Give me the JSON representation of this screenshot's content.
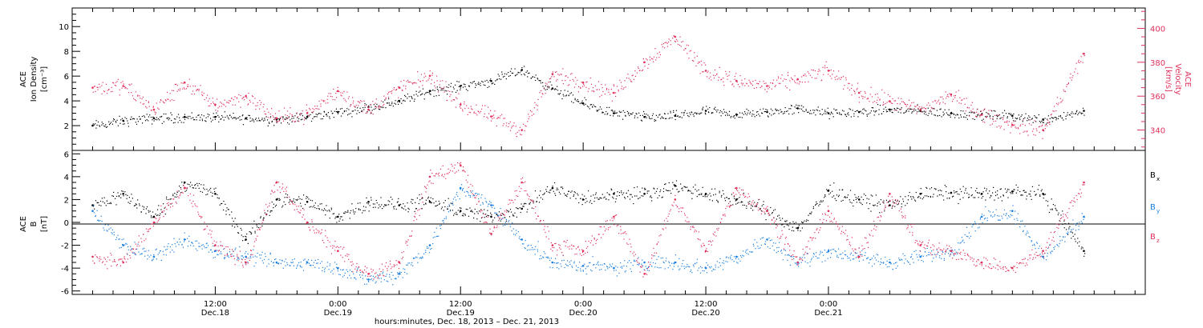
{
  "chart_data": [
    {
      "type": "scatter",
      "panel": "top",
      "ylabel_left": [
        "ACE",
        "Ion Density",
        "[cm⁻³]"
      ],
      "ylabel_right": [
        "ACE",
        "Velocity",
        "[km/s]"
      ],
      "ylim_left": [
        0,
        11.5
      ],
      "ylim_right": [
        328,
        412
      ],
      "yticks_left": [
        "2",
        "4",
        "6",
        "8",
        "10"
      ],
      "yticks_right": [
        "340",
        "360",
        "380",
        "400"
      ],
      "series": [
        {
          "name": "Ion Density",
          "axis": "left",
          "color": "#000000",
          "x_hours": [
            0,
            6,
            12,
            18,
            24,
            30,
            36,
            42,
            48,
            54,
            60,
            66,
            72,
            78,
            84,
            90,
            96,
            102,
            108,
            114,
            120,
            126,
            132,
            138,
            144,
            150,
            156,
            162,
            168,
            174,
            180,
            186,
            194
          ],
          "values": [
            2.0,
            2.4,
            2.6,
            2.7,
            2.7,
            2.6,
            2.5,
            2.7,
            3.1,
            3.5,
            4.0,
            4.8,
            5.2,
            5.6,
            6.5,
            5.0,
            3.8,
            3.0,
            2.7,
            2.8,
            3.2,
            2.9,
            3.1,
            3.4,
            3.0,
            3.1,
            3.3,
            3.2,
            3.0,
            2.9,
            2.8,
            2.5,
            3.2
          ]
        },
        {
          "name": "Velocity",
          "axis": "right",
          "color": "#e0305c",
          "x_hours": [
            0,
            6,
            12,
            18,
            24,
            30,
            36,
            42,
            48,
            54,
            60,
            66,
            72,
            78,
            84,
            90,
            96,
            102,
            108,
            114,
            120,
            126,
            132,
            138,
            144,
            150,
            156,
            162,
            168,
            174,
            180,
            186,
            194
          ],
          "values": [
            365,
            366,
            352,
            368,
            355,
            360,
            347,
            350,
            363,
            352,
            365,
            372,
            355,
            348,
            340,
            373,
            368,
            362,
            380,
            395,
            375,
            369,
            366,
            370,
            375,
            362,
            357,
            352,
            361,
            349,
            343,
            340,
            385
          ]
        }
      ]
    },
    {
      "type": "scatter",
      "panel": "bottom",
      "ylabel_left": [
        "ACE",
        "B",
        "[nT]"
      ],
      "ylim": [
        -6.3,
        6.3
      ],
      "yticks": [
        "-6",
        "-4",
        "-2",
        "0",
        "2",
        "4",
        "6"
      ],
      "legend_placement": "right",
      "series": [
        {
          "name": "Bx",
          "label_main": "B",
          "label_sub": "x",
          "color": "#000000",
          "x_hours": [
            0,
            6,
            12,
            18,
            24,
            30,
            36,
            42,
            48,
            54,
            60,
            66,
            72,
            78,
            84,
            90,
            96,
            102,
            108,
            114,
            120,
            126,
            132,
            138,
            144,
            150,
            156,
            162,
            168,
            174,
            180,
            186,
            194
          ],
          "values": [
            1.5,
            2.5,
            0.5,
            3.5,
            2.5,
            -1.5,
            2.0,
            1.8,
            0.5,
            1.8,
            1.5,
            1.8,
            1.0,
            0.5,
            1.2,
            3.0,
            2.0,
            2.5,
            2.5,
            3.2,
            2.5,
            2.0,
            1.0,
            -0.5,
            2.8,
            2.0,
            1.5,
            2.5,
            2.6,
            2.5,
            2.7,
            2.5,
            -2.5
          ]
        },
        {
          "name": "By",
          "label_main": "B",
          "label_sub": "y",
          "color": "#1a7fe0",
          "x_hours": [
            0,
            6,
            12,
            18,
            24,
            30,
            36,
            42,
            48,
            54,
            60,
            66,
            72,
            78,
            84,
            90,
            96,
            102,
            108,
            114,
            120,
            126,
            132,
            138,
            144,
            150,
            156,
            162,
            168,
            174,
            180,
            186,
            194
          ],
          "values": [
            1.0,
            -2.0,
            -3.0,
            -1.5,
            -2.5,
            -3.0,
            -3.5,
            -3.5,
            -4.0,
            -5.0,
            -4.5,
            -2.0,
            3.0,
            1.5,
            -1.5,
            -3.5,
            -3.8,
            -4.0,
            -3.5,
            -3.5,
            -4.0,
            -3.0,
            -1.5,
            -3.5,
            -2.5,
            -3.0,
            -3.5,
            -3.0,
            -2.5,
            0.5,
            1.0,
            -3.0,
            0.5
          ]
        },
        {
          "name": "Bz",
          "label_main": "B",
          "label_sub": "z",
          "color": "#e0305c",
          "x_hours": [
            0,
            6,
            12,
            18,
            24,
            30,
            36,
            42,
            48,
            54,
            60,
            66,
            72,
            78,
            84,
            90,
            96,
            102,
            108,
            114,
            120,
            126,
            132,
            138,
            144,
            150,
            156,
            162,
            168,
            174,
            180,
            186,
            194
          ],
          "values": [
            -3.0,
            -3.5,
            0.0,
            3.0,
            -2.0,
            -3.5,
            3.5,
            0.0,
            -2.5,
            -4.5,
            -3.5,
            4.0,
            5.0,
            -1.0,
            3.5,
            -2.0,
            -2.5,
            0.5,
            -4.5,
            2.0,
            -2.5,
            3.0,
            1.0,
            -3.5,
            1.0,
            -3.0,
            2.5,
            -2.0,
            -2.5,
            -3.5,
            -4.0,
            -2.5,
            3.5
          ]
        }
      ]
    },
    {
      "type": "scatter",
      "panel": "time_axis",
      "xlim_hours": [
        -4,
        206
      ],
      "x_tick_labels": [
        {
          "hour": 24,
          "time": "12:00",
          "date": "Dec.18"
        },
        {
          "hour": 48,
          "time": "0:00",
          "date": "Dec.19"
        },
        {
          "hour": 72,
          "time": "12:00",
          "date": "Dec.19"
        },
        {
          "hour": 96,
          "time": "0:00",
          "date": "Dec.20"
        },
        {
          "hour": 120,
          "time": "12:00",
          "date": "Dec.20"
        },
        {
          "hour": 144,
          "time": "0:00",
          "date": "Dec.21"
        }
      ],
      "xlabel": "hours:minutes, Dec. 18, 2013 – Dec. 21, 2013"
    }
  ]
}
